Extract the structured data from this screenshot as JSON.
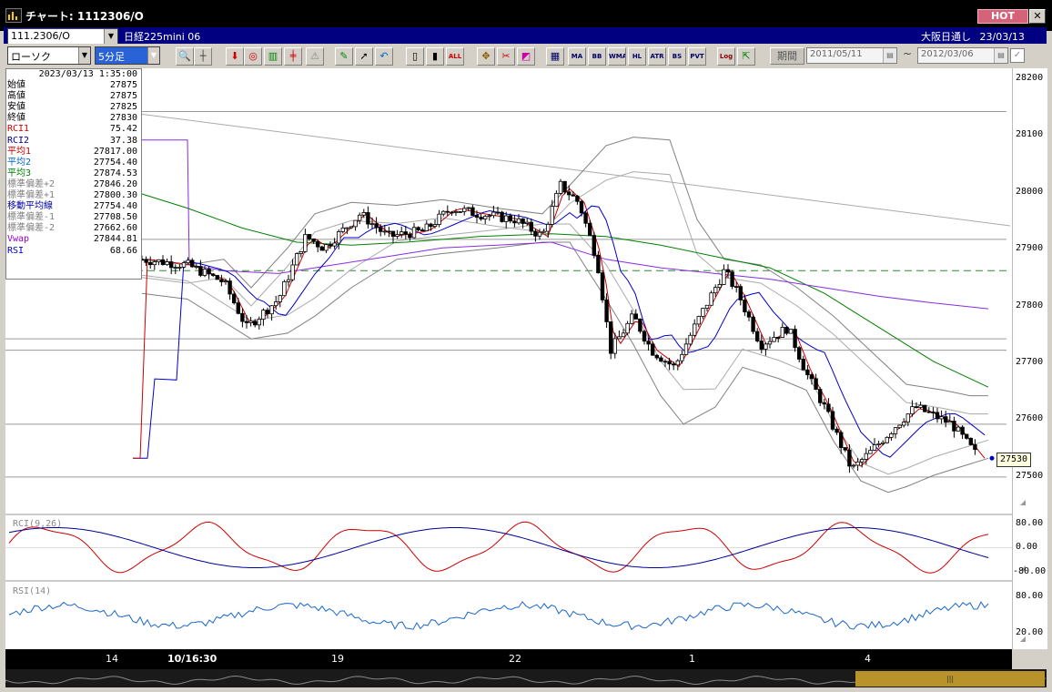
{
  "window": {
    "title": "チャート: 1112306/O",
    "hot_label": "HOT",
    "close_label": "✕"
  },
  "instrument_bar": {
    "symbol_code": "111.2306/O",
    "symbol_name": "日経225mini 06",
    "session": "大阪日通し",
    "date": "23/03/13"
  },
  "toolbar": {
    "chart_type": "ローソク",
    "timeframe": "5分足",
    "period_label": "期間",
    "date_from": "2011/05/11",
    "date_to": "2012/03/06",
    "range_separator": "~",
    "buttons": [
      "zoom",
      "crosshair",
      "draw-down",
      "draw-up",
      "bar",
      "bar2",
      "warning",
      "pen",
      "cursor",
      "undo",
      "candle",
      "candle2",
      "ALL",
      "tool",
      "wrench",
      "palette",
      "grid",
      "MA",
      "BB",
      "WMA",
      "HL",
      "ATR",
      "BS",
      "PVT",
      "Log",
      "export"
    ],
    "button_labels": {
      "all": "ALL",
      "ma": "MA",
      "bb": "BB",
      "wma": "WMA",
      "hl": "HL",
      "atr": "ATR",
      "bs": "BS",
      "pvt": "PVT",
      "log": "Log"
    }
  },
  "info_panel": {
    "datetime": "2023/03/13  1:35:00",
    "rows": [
      {
        "label": "始値",
        "value": "27875",
        "color": "#000000"
      },
      {
        "label": "高値",
        "value": "27875",
        "color": "#000000"
      },
      {
        "label": "安値",
        "value": "27825",
        "color": "#000000"
      },
      {
        "label": "終値",
        "value": "27830",
        "color": "#000000"
      },
      {
        "label": "RCI1",
        "value": "75.42",
        "color": "#cc0000"
      },
      {
        "label": "RCI2",
        "value": "37.38",
        "color": "#000099"
      },
      {
        "label": "平均1",
        "value": "27817.00",
        "color": "#cc0000"
      },
      {
        "label": "平均2",
        "value": "27754.40",
        "color": "#0066cc"
      },
      {
        "label": "平均3",
        "value": "27874.53",
        "color": "#008000"
      },
      {
        "label": "標準偏差+2",
        "value": "27846.20",
        "color": "#808080"
      },
      {
        "label": "標準偏差+1",
        "value": "27800.30",
        "color": "#808080"
      },
      {
        "label": "移動平均線",
        "value": "27754.40",
        "color": "#0000aa"
      },
      {
        "label": "標準偏差-1",
        "value": "27708.50",
        "color": "#808080"
      },
      {
        "label": "標準偏差-2",
        "value": "27662.60",
        "color": "#808080"
      },
      {
        "label": "Vwap",
        "value": "27844.81",
        "color": "#9900cc"
      },
      {
        "label": "RSI",
        "value": "68.66",
        "color": "#0000cc"
      }
    ]
  },
  "price_axis": {
    "labels": [
      "28200",
      "28100",
      "28000",
      "27900",
      "27800",
      "27700",
      "27600",
      "27500"
    ],
    "last_price": "27530"
  },
  "rci_panel": {
    "label": "RCI(9,26)",
    "axis_labels": [
      "80.00",
      "0.00",
      "-80.00"
    ]
  },
  "rsi_panel": {
    "label": "RSI(14)",
    "axis_labels": [
      "80.00",
      "20.00"
    ]
  },
  "time_axis": {
    "labels": [
      "14",
      "10/16:30",
      "19",
      "22",
      "1",
      "4"
    ]
  },
  "colors": {
    "background": "#ffffff",
    "candle_up": "#ffffff",
    "candle_down": "#000000",
    "ma_short": "#cc0000",
    "ma_mid": "#0000cc",
    "ma_long": "#008000",
    "vwap": "#8a2be2",
    "bollinger": "#808080",
    "rci_fast": "#cc0000",
    "rci_slow": "#000099",
    "rsi": "#1a66cc",
    "title_bar": "#000000",
    "instrument_bar": "#000080"
  }
}
